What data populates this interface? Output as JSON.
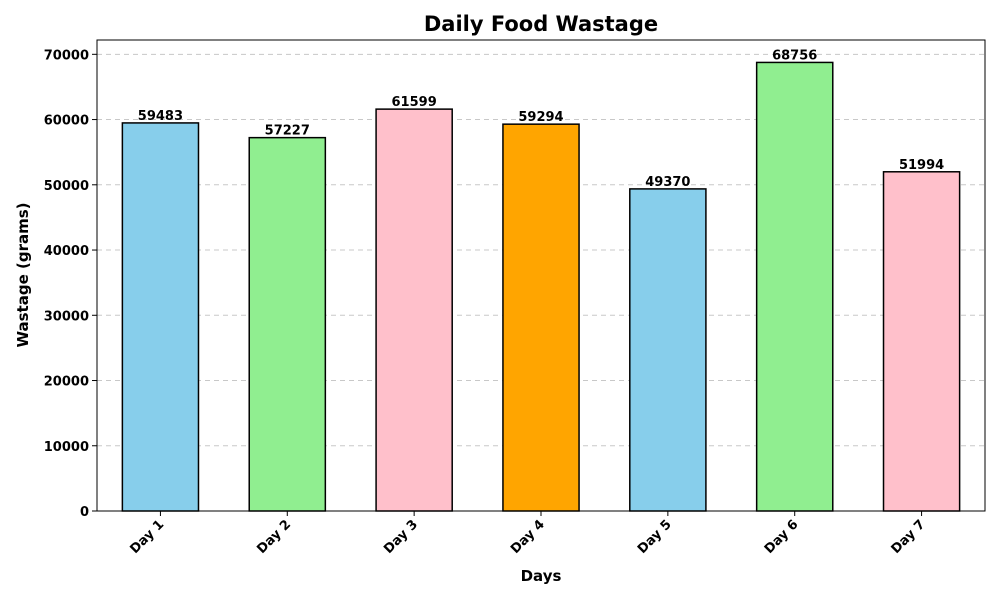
{
  "chart_data": {
    "type": "bar",
    "title": "Daily Food Wastage",
    "xlabel": "Days",
    "ylabel": "Wastage (grams)",
    "categories": [
      "Day 1",
      "Day 2",
      "Day 3",
      "Day 4",
      "Day 5",
      "Day 6",
      "Day 7"
    ],
    "values": [
      59483,
      57227,
      61599,
      59294,
      49370,
      68756,
      51994
    ],
    "value_labels": [
      "59483",
      "57227",
      "61599",
      "59294",
      "49370",
      "68756",
      "51994"
    ],
    "colors": [
      "#87ceeb",
      "#90ee90",
      "#ffc0cb",
      "#ffa500",
      "#87ceeb",
      "#90ee90",
      "#ffc0cb"
    ],
    "ylim": [
      0,
      72194
    ],
    "yticks": [
      0,
      10000,
      20000,
      30000,
      40000,
      50000,
      60000,
      70000
    ],
    "ytick_labels": [
      "0",
      "10000",
      "20000",
      "30000",
      "40000",
      "50000",
      "60000",
      "70000"
    ],
    "grid": "horizontal dashed",
    "legend": "none"
  }
}
